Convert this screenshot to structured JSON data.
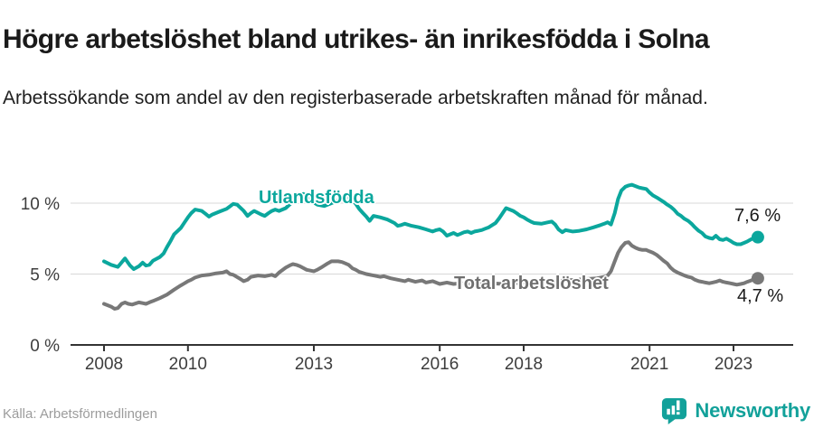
{
  "header": {
    "title": "Högre arbetslöshet bland utrikes- än inrikesfödda i Solna",
    "subtitle": "Arbetssökande som andel av den registerbaserade arbetskraften månad för månad."
  },
  "footer": {
    "source": "Källa: Arbetsförmedlingen",
    "brand": "Newsworthy",
    "brand_icon": "newsworthy-bubble-barchart-icon"
  },
  "colors": {
    "teal": "#0ba79d",
    "gray": "#787878",
    "total_label_gray": "#6f6f6f",
    "axis": "#333333",
    "gridline": "#d8d8d8",
    "tick_text": "#3d3d3d",
    "end_label_text": "#1a1a1a",
    "source_text": "#9c9c9c",
    "brand_teal": "#12a19a"
  },
  "chart_data": {
    "type": "line",
    "title": "Högre arbetslöshet bland utrikes- än inrikesfödda i Solna",
    "subtitle": "Arbetssökande som andel av den registerbaserade arbetskraften månad för månad.",
    "unit": "%",
    "grid": "horizontal-only",
    "legend_position": "inline-on-line",
    "x_axis": {
      "range": [
        2007.2,
        2024.4
      ],
      "ticks": [
        2008,
        2010,
        2013,
        2016,
        2018,
        2021,
        2023
      ],
      "tick_labels": [
        "2008",
        "2010",
        "2013",
        "2016",
        "2018",
        "2021",
        "2023"
      ]
    },
    "y_axis": {
      "range": [
        0,
        12.7
      ],
      "ticks": [
        0,
        5,
        10
      ],
      "tick_labels": [
        "0 %",
        "5 %",
        "10 %"
      ],
      "gridlines": [
        5,
        10
      ]
    },
    "series": [
      {
        "name": "Utlandsfödda",
        "color": "#0ba79d",
        "end_value": 7.6,
        "end_label": "7,6 %",
        "points": [
          [
            2008.0,
            5.9
          ],
          [
            2008.17,
            5.65
          ],
          [
            2008.33,
            5.5
          ],
          [
            2008.5,
            6.1
          ],
          [
            2008.62,
            5.6
          ],
          [
            2008.71,
            5.35
          ],
          [
            2008.83,
            5.55
          ],
          [
            2008.92,
            5.8
          ],
          [
            2009.0,
            5.6
          ],
          [
            2009.08,
            5.65
          ],
          [
            2009.17,
            5.95
          ],
          [
            2009.33,
            6.2
          ],
          [
            2009.42,
            6.45
          ],
          [
            2009.5,
            6.9
          ],
          [
            2009.58,
            7.3
          ],
          [
            2009.67,
            7.8
          ],
          [
            2009.83,
            8.25
          ],
          [
            2009.92,
            8.65
          ],
          [
            2010.0,
            9.0
          ],
          [
            2010.08,
            9.3
          ],
          [
            2010.17,
            9.55
          ],
          [
            2010.33,
            9.45
          ],
          [
            2010.42,
            9.25
          ],
          [
            2010.5,
            9.05
          ],
          [
            2010.58,
            9.2
          ],
          [
            2010.75,
            9.4
          ],
          [
            2010.92,
            9.6
          ],
          [
            2011.08,
            9.95
          ],
          [
            2011.17,
            9.9
          ],
          [
            2011.33,
            9.45
          ],
          [
            2011.42,
            9.1
          ],
          [
            2011.5,
            9.3
          ],
          [
            2011.58,
            9.45
          ],
          [
            2011.75,
            9.2
          ],
          [
            2011.83,
            9.1
          ],
          [
            2011.92,
            9.3
          ],
          [
            2012.0,
            9.45
          ],
          [
            2012.08,
            9.55
          ],
          [
            2012.17,
            9.45
          ],
          [
            2012.33,
            9.65
          ],
          [
            2012.42,
            9.9
          ],
          [
            2012.58,
            10.35
          ],
          [
            2012.67,
            10.6
          ],
          [
            2012.75,
            10.65
          ],
          [
            2012.83,
            10.5
          ],
          [
            2012.92,
            10.3
          ],
          [
            2013.0,
            10.05
          ],
          [
            2013.08,
            9.9
          ],
          [
            2013.25,
            9.8
          ],
          [
            2013.42,
            10.0
          ],
          [
            2013.58,
            10.2
          ],
          [
            2013.75,
            10.4
          ],
          [
            2013.83,
            10.45
          ],
          [
            2013.92,
            10.25
          ],
          [
            2014.0,
            9.95
          ],
          [
            2014.08,
            9.6
          ],
          [
            2014.17,
            9.3
          ],
          [
            2014.25,
            9.05
          ],
          [
            2014.33,
            8.75
          ],
          [
            2014.42,
            9.1
          ],
          [
            2014.58,
            9.0
          ],
          [
            2014.75,
            8.85
          ],
          [
            2014.92,
            8.6
          ],
          [
            2015.0,
            8.4
          ],
          [
            2015.08,
            8.45
          ],
          [
            2015.17,
            8.55
          ],
          [
            2015.33,
            8.4
          ],
          [
            2015.5,
            8.3
          ],
          [
            2015.67,
            8.15
          ],
          [
            2015.83,
            8.0
          ],
          [
            2015.92,
            8.1
          ],
          [
            2016.0,
            8.15
          ],
          [
            2016.08,
            8.0
          ],
          [
            2016.17,
            7.7
          ],
          [
            2016.25,
            7.8
          ],
          [
            2016.33,
            7.9
          ],
          [
            2016.42,
            7.75
          ],
          [
            2016.5,
            7.85
          ],
          [
            2016.58,
            7.95
          ],
          [
            2016.67,
            8.0
          ],
          [
            2016.75,
            7.9
          ],
          [
            2016.83,
            8.0
          ],
          [
            2016.92,
            8.05
          ],
          [
            2017.0,
            8.1
          ],
          [
            2017.08,
            8.2
          ],
          [
            2017.17,
            8.3
          ],
          [
            2017.25,
            8.45
          ],
          [
            2017.33,
            8.6
          ],
          [
            2017.42,
            8.95
          ],
          [
            2017.5,
            9.3
          ],
          [
            2017.58,
            9.65
          ],
          [
            2017.67,
            9.55
          ],
          [
            2017.75,
            9.45
          ],
          [
            2017.83,
            9.3
          ],
          [
            2017.92,
            9.1
          ],
          [
            2018.0,
            9.0
          ],
          [
            2018.08,
            8.85
          ],
          [
            2018.17,
            8.7
          ],
          [
            2018.25,
            8.6
          ],
          [
            2018.42,
            8.55
          ],
          [
            2018.58,
            8.65
          ],
          [
            2018.67,
            8.7
          ],
          [
            2018.75,
            8.5
          ],
          [
            2018.83,
            8.15
          ],
          [
            2018.92,
            7.95
          ],
          [
            2019.0,
            8.1
          ],
          [
            2019.17,
            8.0
          ],
          [
            2019.33,
            8.05
          ],
          [
            2019.5,
            8.15
          ],
          [
            2019.67,
            8.3
          ],
          [
            2019.83,
            8.45
          ],
          [
            2019.92,
            8.55
          ],
          [
            2020.0,
            8.65
          ],
          [
            2020.08,
            8.5
          ],
          [
            2020.17,
            9.3
          ],
          [
            2020.25,
            10.3
          ],
          [
            2020.33,
            10.9
          ],
          [
            2020.42,
            11.15
          ],
          [
            2020.5,
            11.25
          ],
          [
            2020.58,
            11.3
          ],
          [
            2020.67,
            11.2
          ],
          [
            2020.75,
            11.1
          ],
          [
            2020.83,
            11.05
          ],
          [
            2020.92,
            11.0
          ],
          [
            2021.0,
            10.75
          ],
          [
            2021.08,
            10.55
          ],
          [
            2021.17,
            10.4
          ],
          [
            2021.25,
            10.25
          ],
          [
            2021.33,
            10.1
          ],
          [
            2021.42,
            9.9
          ],
          [
            2021.5,
            9.75
          ],
          [
            2021.58,
            9.55
          ],
          [
            2021.67,
            9.25
          ],
          [
            2021.75,
            9.1
          ],
          [
            2021.83,
            8.9
          ],
          [
            2021.92,
            8.75
          ],
          [
            2022.0,
            8.55
          ],
          [
            2022.08,
            8.3
          ],
          [
            2022.17,
            8.05
          ],
          [
            2022.25,
            7.9
          ],
          [
            2022.33,
            7.65
          ],
          [
            2022.42,
            7.55
          ],
          [
            2022.5,
            7.5
          ],
          [
            2022.58,
            7.7
          ],
          [
            2022.67,
            7.45
          ],
          [
            2022.75,
            7.4
          ],
          [
            2022.83,
            7.5
          ],
          [
            2022.92,
            7.35
          ],
          [
            2023.0,
            7.2
          ],
          [
            2023.08,
            7.1
          ],
          [
            2023.17,
            7.1
          ],
          [
            2023.25,
            7.2
          ],
          [
            2023.33,
            7.3
          ],
          [
            2023.42,
            7.45
          ],
          [
            2023.5,
            7.55
          ],
          [
            2023.58,
            7.6
          ]
        ]
      },
      {
        "name": "Total arbetslöshet",
        "color": "#787878",
        "end_value": 4.7,
        "end_label": "4,7 %",
        "points": [
          [
            2008.0,
            2.9
          ],
          [
            2008.17,
            2.7
          ],
          [
            2008.25,
            2.55
          ],
          [
            2008.33,
            2.6
          ],
          [
            2008.42,
            2.9
          ],
          [
            2008.5,
            3.0
          ],
          [
            2008.58,
            2.9
          ],
          [
            2008.67,
            2.85
          ],
          [
            2008.83,
            3.0
          ],
          [
            2008.92,
            2.95
          ],
          [
            2009.0,
            2.9
          ],
          [
            2009.08,
            3.0
          ],
          [
            2009.17,
            3.1
          ],
          [
            2009.33,
            3.3
          ],
          [
            2009.5,
            3.55
          ],
          [
            2009.67,
            3.9
          ],
          [
            2009.83,
            4.2
          ],
          [
            2009.92,
            4.35
          ],
          [
            2010.0,
            4.5
          ],
          [
            2010.08,
            4.6
          ],
          [
            2010.17,
            4.75
          ],
          [
            2010.33,
            4.9
          ],
          [
            2010.5,
            4.95
          ],
          [
            2010.67,
            5.05
          ],
          [
            2010.83,
            5.1
          ],
          [
            2010.92,
            5.2
          ],
          [
            2011.0,
            5.0
          ],
          [
            2011.08,
            4.95
          ],
          [
            2011.25,
            4.65
          ],
          [
            2011.33,
            4.5
          ],
          [
            2011.42,
            4.6
          ],
          [
            2011.5,
            4.8
          ],
          [
            2011.67,
            4.9
          ],
          [
            2011.83,
            4.85
          ],
          [
            2012.0,
            4.95
          ],
          [
            2012.08,
            4.85
          ],
          [
            2012.17,
            5.1
          ],
          [
            2012.33,
            5.45
          ],
          [
            2012.42,
            5.6
          ],
          [
            2012.5,
            5.7
          ],
          [
            2012.58,
            5.65
          ],
          [
            2012.67,
            5.55
          ],
          [
            2012.83,
            5.3
          ],
          [
            2013.0,
            5.2
          ],
          [
            2013.08,
            5.3
          ],
          [
            2013.17,
            5.45
          ],
          [
            2013.25,
            5.6
          ],
          [
            2013.33,
            5.75
          ],
          [
            2013.42,
            5.9
          ],
          [
            2013.58,
            5.9
          ],
          [
            2013.67,
            5.85
          ],
          [
            2013.75,
            5.75
          ],
          [
            2013.83,
            5.65
          ],
          [
            2013.92,
            5.4
          ],
          [
            2014.0,
            5.3
          ],
          [
            2014.08,
            5.15
          ],
          [
            2014.25,
            5.0
          ],
          [
            2014.42,
            4.9
          ],
          [
            2014.58,
            4.8
          ],
          [
            2014.67,
            4.85
          ],
          [
            2014.83,
            4.7
          ],
          [
            2015.0,
            4.6
          ],
          [
            2015.17,
            4.5
          ],
          [
            2015.25,
            4.6
          ],
          [
            2015.42,
            4.45
          ],
          [
            2015.58,
            4.55
          ],
          [
            2015.67,
            4.4
          ],
          [
            2015.83,
            4.5
          ],
          [
            2016.0,
            4.3
          ],
          [
            2016.17,
            4.4
          ],
          [
            2016.33,
            4.3
          ],
          [
            2016.5,
            4.35
          ],
          [
            2016.75,
            4.3
          ],
          [
            2017.0,
            4.3
          ],
          [
            2017.25,
            4.35
          ],
          [
            2017.5,
            4.3
          ],
          [
            2017.75,
            4.35
          ],
          [
            2018.0,
            4.4
          ],
          [
            2018.25,
            4.4
          ],
          [
            2018.5,
            4.45
          ],
          [
            2018.75,
            4.5
          ],
          [
            2019.0,
            4.55
          ],
          [
            2019.25,
            4.6
          ],
          [
            2019.5,
            4.65
          ],
          [
            2019.75,
            4.7
          ],
          [
            2019.92,
            4.8
          ],
          [
            2020.0,
            4.9
          ],
          [
            2020.08,
            5.2
          ],
          [
            2020.17,
            5.9
          ],
          [
            2020.25,
            6.5
          ],
          [
            2020.33,
            6.9
          ],
          [
            2020.42,
            7.2
          ],
          [
            2020.5,
            7.25
          ],
          [
            2020.58,
            7.0
          ],
          [
            2020.67,
            6.85
          ],
          [
            2020.75,
            6.75
          ],
          [
            2020.83,
            6.7
          ],
          [
            2020.92,
            6.7
          ],
          [
            2021.0,
            6.6
          ],
          [
            2021.08,
            6.5
          ],
          [
            2021.17,
            6.35
          ],
          [
            2021.25,
            6.15
          ],
          [
            2021.33,
            5.95
          ],
          [
            2021.42,
            5.75
          ],
          [
            2021.5,
            5.45
          ],
          [
            2021.58,
            5.25
          ],
          [
            2021.67,
            5.1
          ],
          [
            2021.75,
            5.0
          ],
          [
            2021.83,
            4.9
          ],
          [
            2021.92,
            4.8
          ],
          [
            2022.0,
            4.75
          ],
          [
            2022.08,
            4.6
          ],
          [
            2022.17,
            4.5
          ],
          [
            2022.25,
            4.45
          ],
          [
            2022.33,
            4.4
          ],
          [
            2022.42,
            4.35
          ],
          [
            2022.5,
            4.4
          ],
          [
            2022.58,
            4.45
          ],
          [
            2022.67,
            4.55
          ],
          [
            2022.75,
            4.45
          ],
          [
            2022.83,
            4.4
          ],
          [
            2022.92,
            4.35
          ],
          [
            2023.0,
            4.3
          ],
          [
            2023.08,
            4.25
          ],
          [
            2023.17,
            4.3
          ],
          [
            2023.25,
            4.35
          ],
          [
            2023.33,
            4.45
          ],
          [
            2023.42,
            4.55
          ],
          [
            2023.5,
            4.65
          ],
          [
            2023.58,
            4.7
          ]
        ]
      }
    ]
  }
}
